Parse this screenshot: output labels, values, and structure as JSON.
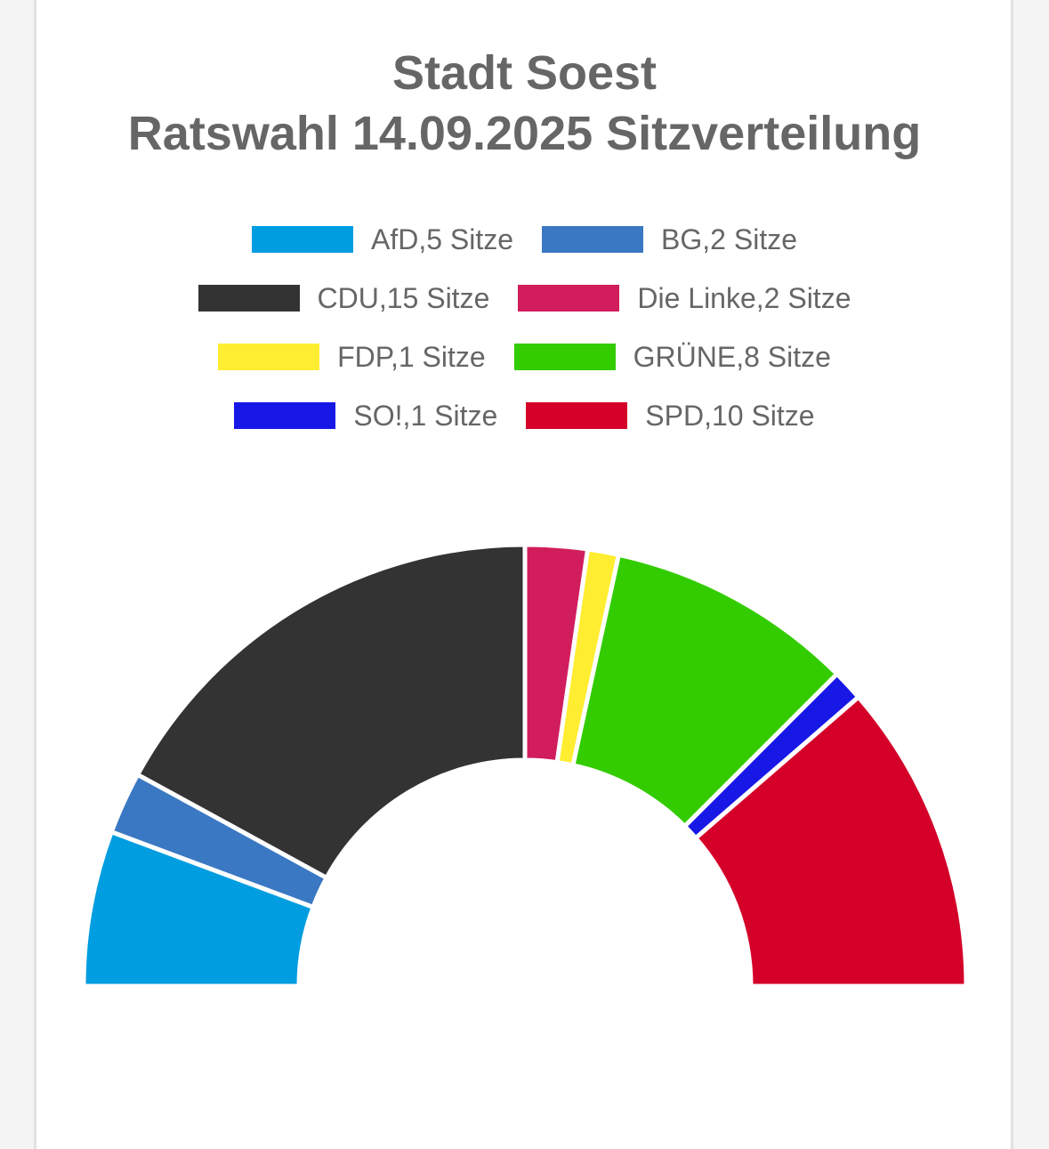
{
  "chart_data": {
    "type": "pie",
    "subtype": "semicircle-parliament",
    "title_lines": [
      "Stadt Soest",
      "Ratswahl 14.09.2025 Sitzverteilung"
    ],
    "legend_position": "top",
    "legend_rows": [
      [
        0,
        1
      ],
      [
        2,
        3
      ],
      [
        4,
        5
      ],
      [
        6,
        7
      ]
    ],
    "series": [
      {
        "name": "AfD",
        "value": 5,
        "label": "AfD,5 Sitze",
        "color": "#009ee0"
      },
      {
        "name": "BG",
        "value": 2,
        "label": "BG,2 Sitze",
        "color": "#3a78c3"
      },
      {
        "name": "CDU",
        "value": 15,
        "label": "CDU,15 Sitze",
        "color": "#333333"
      },
      {
        "name": "Die Linke",
        "value": 2,
        "label": "Die Linke,2 Sitze",
        "color": "#d11d5c"
      },
      {
        "name": "FDP",
        "value": 1,
        "label": "FDP,1 Sitze",
        "color": "#ffed32"
      },
      {
        "name": "GRÜNE",
        "value": 8,
        "label": "GRÜNE,8 Sitze",
        "color": "#33cc00"
      },
      {
        "name": "SO!",
        "value": 1,
        "label": "SO!,1 Sitze",
        "color": "#1717e6"
      },
      {
        "name": "SPD",
        "value": 10,
        "label": "SPD,10 Sitze",
        "color": "#d5002a"
      }
    ]
  }
}
